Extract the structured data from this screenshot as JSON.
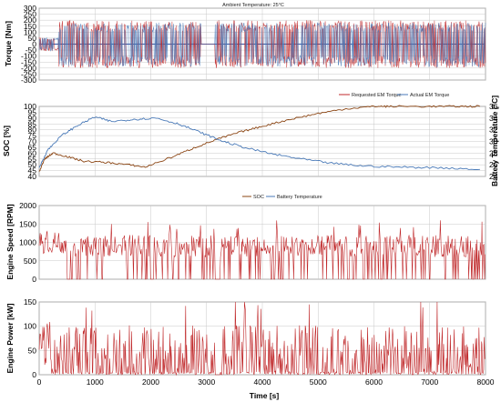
{
  "colors": {
    "red": "#c0292b",
    "blue": "#4a7ab8",
    "brown": "#8b4513",
    "green": "#2e8b2e",
    "magenta": "#c838c8",
    "axis_red": "#c0292b"
  },
  "chart_data": [
    {
      "type": "line",
      "title": "Ambient Temperature: 25°C",
      "ylabel": "Torque [Nm]",
      "xlim": [
        0,
        8000
      ],
      "ylim": [
        -300,
        300
      ],
      "yticks": [
        "300",
        "250",
        "200",
        "150",
        "100",
        "50",
        "0",
        "-50",
        "-100",
        "-150",
        "-200",
        "-250",
        "-300"
      ],
      "grid": true,
      "legend": "bottom-right",
      "series": [
        {
          "name": "Requested EM Torque",
          "color": "red",
          "style": "dense-oscillation",
          "upper": 200,
          "lower": -200
        },
        {
          "name": "Actual EM Torque",
          "color": "blue",
          "style": "dense-oscillation",
          "upper": 180,
          "lower": -190
        }
      ]
    },
    {
      "type": "line",
      "ylabel": "SOC [%]",
      "ylabel_right": "Battery Temperature [°C]",
      "xlim": [
        0,
        8000
      ],
      "ylim": [
        40,
        100
      ],
      "ylim_right": [
        24,
        36
      ],
      "yticks": [
        "100",
        "95",
        "90",
        "85",
        "80",
        "75",
        "70",
        "65",
        "60",
        "55",
        "50",
        "45",
        "40"
      ],
      "yticks_right": [
        "36",
        "34",
        "32",
        "30",
        "28",
        "26",
        "24"
      ],
      "grid": true,
      "legend": "bottom-center",
      "series": [
        {
          "name": "SOC",
          "color": "brown",
          "axis": "left",
          "x": [
            0,
            100,
            250,
            500,
            800,
            1200,
            1600,
            1900,
            2400,
            2800,
            3200,
            3600,
            4000,
            4500,
            5000,
            5500,
            6000,
            6300,
            7000,
            7500,
            7900
          ],
          "y": [
            44,
            55,
            60,
            57,
            53,
            52,
            50,
            48,
            57,
            65,
            72,
            78,
            83,
            89,
            94,
            98,
            100,
            100,
            100,
            100,
            100
          ]
        },
        {
          "name": "Battery Temperature",
          "color": "blue",
          "axis": "right",
          "x": [
            0,
            150,
            400,
            700,
            1000,
            1300,
            1700,
            2100,
            2500,
            2900,
            3300,
            3700,
            4200,
            4700,
            5200,
            5800,
            6500,
            7200,
            7900
          ],
          "y": [
            25.5,
            28.5,
            31.0,
            32.8,
            34.2,
            33.4,
            33.8,
            34.0,
            33.0,
            31.5,
            30.0,
            28.9,
            27.8,
            27.0,
            26.3,
            25.8,
            25.6,
            25.5,
            25.2
          ]
        }
      ]
    },
    {
      "type": "line",
      "ylabel": "Engine Speed [RPM]",
      "xlim": [
        0,
        8000
      ],
      "ylim": [
        0,
        2000
      ],
      "yticks": [
        "2000",
        "1500",
        "1000",
        "500",
        "0"
      ],
      "grid": true,
      "series": [
        {
          "name": "",
          "color": "red",
          "style": "on-off",
          "on_level": 1000,
          "max": 1600
        }
      ]
    },
    {
      "type": "line",
      "ylabel": "Engine Power [kW]",
      "xlabel": "Time [s]",
      "xlim": [
        0,
        8000
      ],
      "ylim": [
        0,
        150
      ],
      "yticks": [
        "150",
        "100",
        "50",
        "0"
      ],
      "xticks": [
        "0",
        "1000",
        "2000",
        "3000",
        "4000",
        "5000",
        "6000",
        "7000",
        "8000"
      ],
      "grid": true,
      "series": [
        {
          "name": "",
          "color": "red",
          "style": "spikes",
          "typical": 60,
          "max": 155
        }
      ]
    }
  ],
  "legend_labels": {
    "requested": "Requested EM Torque",
    "actual": "Actual EM Torque",
    "soc": "SOC",
    "battery_temp": "Battery Temperature"
  }
}
